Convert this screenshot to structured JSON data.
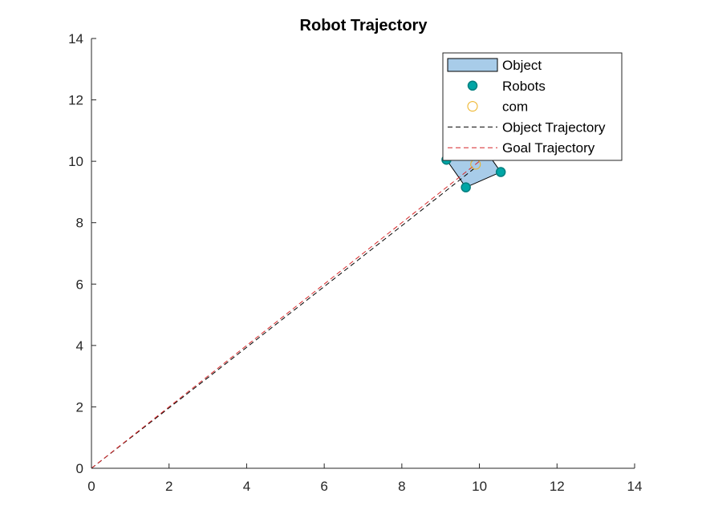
{
  "chart_data": {
    "type": "line",
    "title": "Robot Trajectory",
    "xlabel": "",
    "ylabel": "",
    "xlim": [
      0,
      14
    ],
    "ylim": [
      0,
      14
    ],
    "xticks": [
      0,
      2,
      4,
      6,
      8,
      10,
      12,
      14
    ],
    "yticks": [
      0,
      2,
      4,
      6,
      8,
      10,
      12,
      14
    ],
    "grid": false,
    "legend_position": "top-right",
    "series": [
      {
        "name": "Object",
        "kind": "polygon",
        "color": "#a8cce9",
        "edge_color": "#000000",
        "points": [
          [
            9.15,
            10.05
          ],
          [
            9.65,
            9.15
          ],
          [
            10.55,
            9.65
          ],
          [
            10.05,
            10.55
          ]
        ]
      },
      {
        "name": "Robots",
        "kind": "markers",
        "color": "#00a6a6",
        "edge_color": "#007f7f",
        "points": [
          [
            9.15,
            10.05
          ],
          [
            9.65,
            9.15
          ],
          [
            10.55,
            9.65
          ]
        ]
      },
      {
        "name": "com",
        "kind": "open-circle",
        "color": "#edb120",
        "points": [
          [
            9.9,
            9.9
          ]
        ]
      },
      {
        "name": "Object Trajectory",
        "kind": "dashed-line",
        "color": "#000000",
        "points": [
          [
            0,
            0
          ],
          [
            3,
            2.95
          ],
          [
            6,
            5.92
          ],
          [
            8,
            7.9
          ],
          [
            9.9,
            9.8
          ]
        ]
      },
      {
        "name": "Goal Trajectory",
        "kind": "dashed-line",
        "color": "#d62728",
        "points": [
          [
            0,
            0
          ],
          [
            10.2,
            10.2
          ]
        ]
      }
    ]
  }
}
